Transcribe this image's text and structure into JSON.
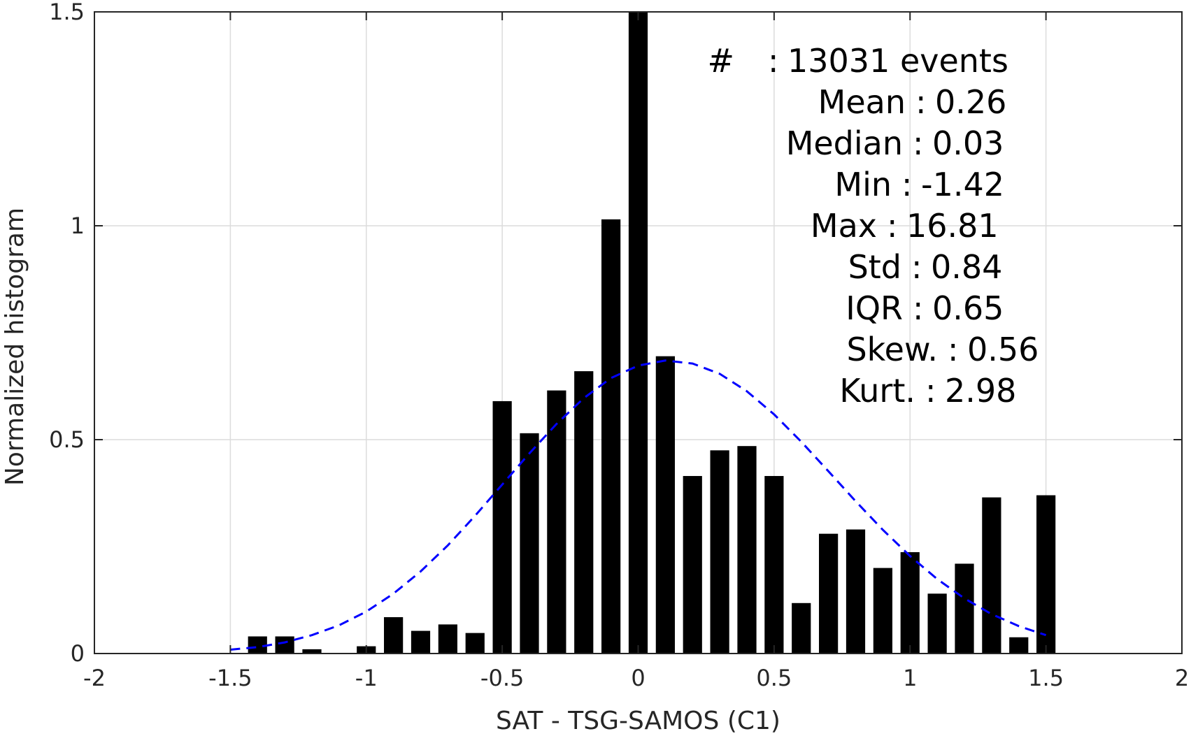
{
  "chart_data": {
    "type": "bar",
    "title": "",
    "xlabel": "SAT - TSG-SAMOS (C1)",
    "ylabel": "Normalized histogram",
    "xlim": [
      -2,
      2
    ],
    "ylim": [
      0,
      1.5
    ],
    "xticks": [
      -2,
      -1.5,
      -1,
      -0.5,
      0,
      0.5,
      1,
      1.5,
      2
    ],
    "yticks": [
      0,
      0.5,
      1,
      1.5
    ],
    "xtick_labels": [
      "-2",
      "-1.5",
      "-1",
      "-0.5",
      "0",
      "0.5",
      "1",
      "1.5",
      "2"
    ],
    "ytick_labels": [
      "0",
      "0.5",
      "1",
      "1.5"
    ],
    "grid": true,
    "bar_color": "#000000",
    "bar_width": 0.07,
    "bins": {
      "x": [
        -1.4,
        -1.3,
        -1.2,
        -1.1,
        -1.0,
        -0.9,
        -0.8,
        -0.7,
        -0.6,
        -0.5,
        -0.4,
        -0.3,
        -0.2,
        -0.1,
        0.0,
        0.1,
        0.2,
        0.3,
        0.4,
        0.5,
        0.6,
        0.7,
        0.8,
        0.9,
        1.0,
        1.1,
        1.2,
        1.3,
        1.4,
        1.5
      ],
      "values": [
        0.04,
        0.04,
        0.01,
        0.0,
        0.017,
        0.085,
        0.053,
        0.068,
        0.048,
        0.59,
        0.515,
        0.615,
        0.66,
        1.015,
        1.5,
        0.695,
        0.415,
        0.475,
        0.485,
        0.415,
        0.118,
        0.28,
        0.29,
        0.2,
        0.237,
        0.14,
        0.21,
        0.365,
        0.038,
        0.37
      ]
    },
    "fit_curve": {
      "style": "dashed",
      "color": "#0000ff",
      "x": [
        -1.5,
        -1.4,
        -1.3,
        -1.2,
        -1.1,
        -1.0,
        -0.9,
        -0.8,
        -0.7,
        -0.6,
        -0.5,
        -0.4,
        -0.3,
        -0.2,
        -0.1,
        0.0,
        0.1,
        0.2,
        0.3,
        0.4,
        0.5,
        0.6,
        0.7,
        0.8,
        0.9,
        1.0,
        1.1,
        1.2,
        1.3,
        1.4,
        1.5
      ],
      "y": [
        0.009,
        0.015,
        0.026,
        0.043,
        0.066,
        0.098,
        0.14,
        0.192,
        0.253,
        0.322,
        0.395,
        0.468,
        0.537,
        0.597,
        0.644,
        0.673,
        0.685,
        0.678,
        0.654,
        0.613,
        0.559,
        0.495,
        0.426,
        0.356,
        0.289,
        0.228,
        0.174,
        0.129,
        0.092,
        0.064,
        0.043
      ]
    },
    "stats": [
      {
        "label": "#",
        "sep": ":",
        "value": "13031 events"
      },
      {
        "label": "Mean",
        "sep": ":",
        "value": "0.26"
      },
      {
        "label": "Median",
        "sep": ":",
        "value": "0.03"
      },
      {
        "label": "Min",
        "sep": ":",
        "value": "-1.42"
      },
      {
        "label": "Max",
        "sep": ":",
        "value": "16.81"
      },
      {
        "label": "Std",
        "sep": ":",
        "value": "0.84"
      },
      {
        "label": "IQR",
        "sep": ":",
        "value": "0.65"
      },
      {
        "label": "Skew.",
        "sep": ":",
        "value": "0.56"
      },
      {
        "label": "Kurt.",
        "sep": ":",
        "value": "2.98"
      }
    ]
  }
}
